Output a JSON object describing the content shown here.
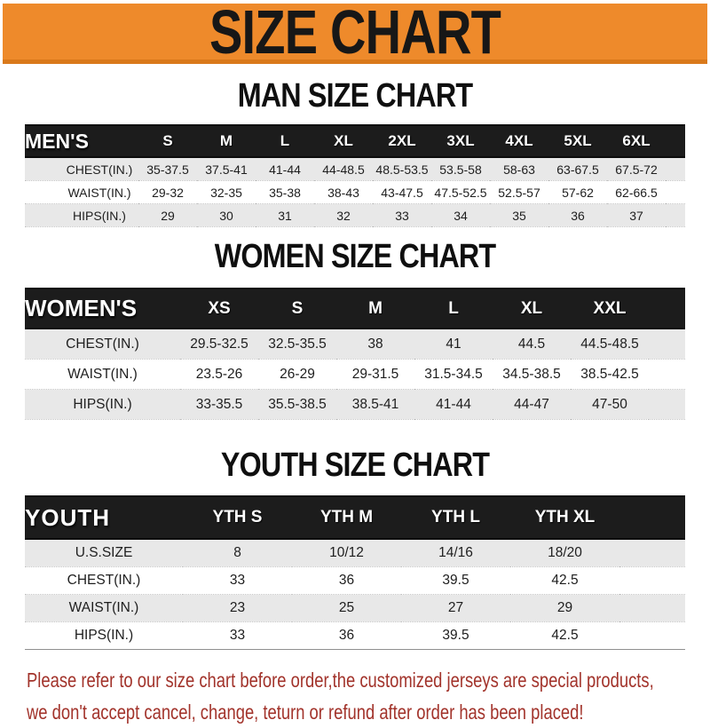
{
  "banner": {
    "title": "SIZE CHART"
  },
  "sections": [
    {
      "title": "MAN SIZE CHART",
      "header_label": "MEN'S",
      "columns": [
        "S",
        "M",
        "L",
        "XL",
        "2XL",
        "3XL",
        "4XL",
        "5XL",
        "6XL"
      ],
      "rows": [
        {
          "label": "CHEST(IN.)",
          "values": [
            "35-37.5",
            "37.5-41",
            "41-44",
            "44-48.5",
            "48.5-53.5",
            "53.5-58",
            "58-63",
            "63-67.5",
            "67.5-72"
          ]
        },
        {
          "label": "WAIST(IN.)",
          "values": [
            "29-32",
            "32-35",
            "35-38",
            "38-43",
            "43-47.5",
            "47.5-52.5",
            "52.5-57",
            "57-62",
            "62-66.5"
          ]
        },
        {
          "label": "HIPS(IN.)",
          "values": [
            "29",
            "30",
            "31",
            "32",
            "33",
            "34",
            "35",
            "36",
            "37"
          ]
        }
      ]
    },
    {
      "title": "WOMEN SIZE CHART",
      "header_label": "WOMEN'S",
      "columns": [
        "XS",
        "S",
        "M",
        "L",
        "XL",
        "XXL"
      ],
      "rows": [
        {
          "label": "CHEST(IN.)",
          "values": [
            "29.5-32.5",
            "32.5-35.5",
            "38",
            "41",
            "44.5",
            "44.5-48.5"
          ]
        },
        {
          "label": "WAIST(IN.)",
          "values": [
            "23.5-26",
            "26-29",
            "29-31.5",
            "31.5-34.5",
            "34.5-38.5",
            "38.5-42.5"
          ]
        },
        {
          "label": "HIPS(IN.)",
          "values": [
            "33-35.5",
            "35.5-38.5",
            "38.5-41",
            "41-44",
            "44-47",
            "47-50"
          ]
        }
      ]
    },
    {
      "title": "YOUTH SIZE CHART",
      "header_label": "YOUTH",
      "columns": [
        "YTH S",
        "YTH M",
        "YTH L",
        "YTH XL"
      ],
      "rows": [
        {
          "label": "U.S.SIZE",
          "values": [
            "8",
            "10/12",
            "14/16",
            "18/20"
          ]
        },
        {
          "label": "CHEST(IN.)",
          "values": [
            "33",
            "36",
            "39.5",
            "42.5"
          ]
        },
        {
          "label": "WAIST(IN.)",
          "values": [
            "23",
            "25",
            "27",
            "29"
          ]
        },
        {
          "label": "HIPS(IN.)",
          "values": [
            "33",
            "36",
            "39.5",
            "42.5"
          ]
        }
      ]
    }
  ],
  "footer": {
    "line1": "Please refer to our size chart before order,the customized jerseys are special products,",
    "line2": "we don't accept cancel, change, teturn or refund after order has been placed!"
  },
  "colors": {
    "banner_bg": "#EE8A2B",
    "banner_edge": "#D9791B",
    "bar_bg": "#1C1C1C",
    "row_alt": "#E8E8E8",
    "note_text": "#A2332B"
  }
}
